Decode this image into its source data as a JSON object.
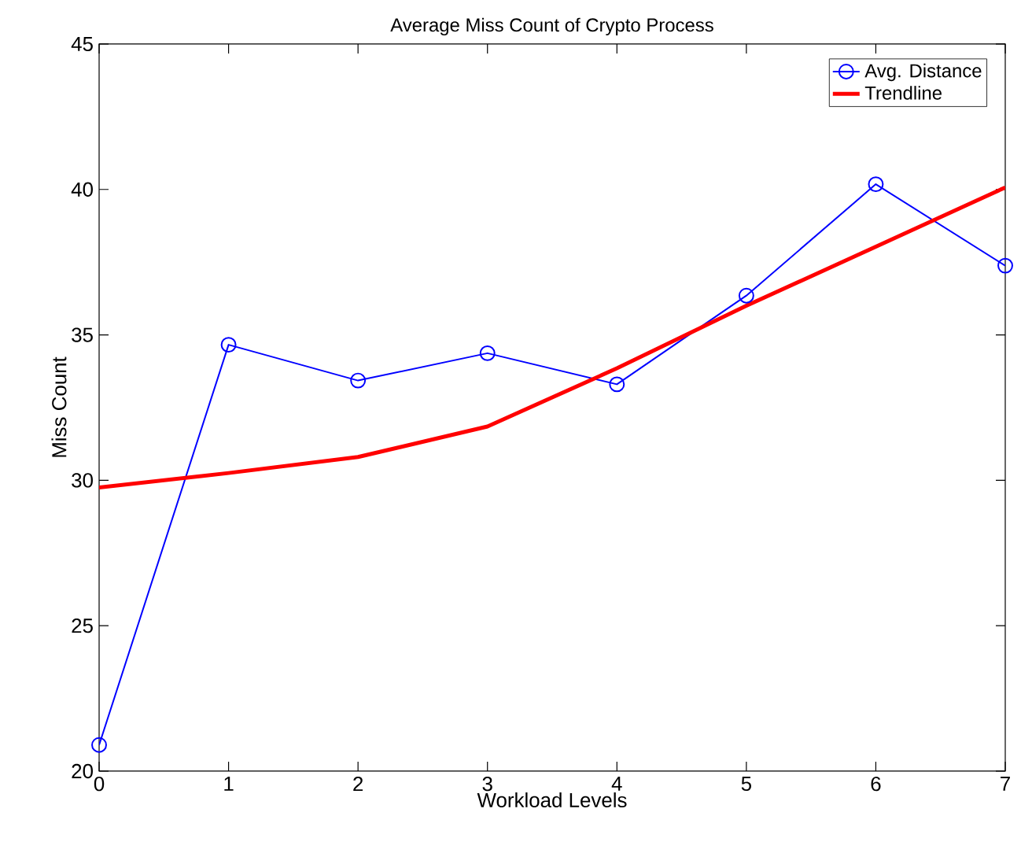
{
  "chart_data": {
    "type": "line",
    "title": "Average Miss Count of Crypto Process",
    "xlabel": "Workload Levels",
    "ylabel": "Miss Count",
    "x": [
      0,
      1,
      2,
      3,
      4,
      5,
      6,
      7
    ],
    "series": [
      {
        "name": "Avg. Distance",
        "color": "#0000ff",
        "marker": "circle",
        "values": [
          20.9,
          34.66,
          33.43,
          34.37,
          33.3,
          36.35,
          40.18,
          37.38
        ]
      },
      {
        "name": "Trendline",
        "color": "#ff0000",
        "marker": "none",
        "values": [
          29.75,
          30.25,
          30.8,
          31.85,
          33.85,
          36.0,
          38.03,
          40.07
        ]
      }
    ],
    "xlim": [
      0,
      7
    ],
    "ylim": [
      20,
      45
    ],
    "xticks": [
      0,
      1,
      2,
      3,
      4,
      5,
      6,
      7
    ],
    "yticks": [
      20,
      25,
      30,
      35,
      40,
      45
    ],
    "grid": false,
    "legend": "top right",
    "line_style": "solid"
  }
}
